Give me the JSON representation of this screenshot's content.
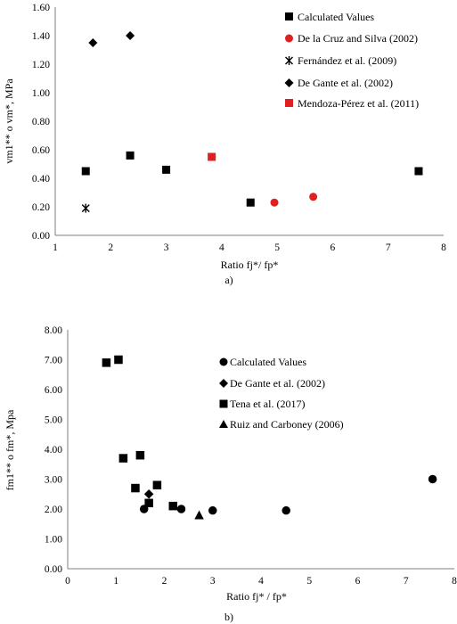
{
  "chart_data": [
    {
      "type": "scatter",
      "caption": "a)",
      "xlabel": "Ratio fj*/ fp*",
      "ylabel": "vm1** o vm*, MPa",
      "xlim": [
        1,
        8
      ],
      "ylim": [
        0,
        1.6
      ],
      "xticks": [
        "1",
        "2",
        "3",
        "4",
        "5",
        "6",
        "7",
        "8"
      ],
      "yticks": [
        "0.00",
        "0.20",
        "0.40",
        "0.60",
        "0.80",
        "1.00",
        "1.20",
        "1.40",
        "1.60"
      ],
      "grid": false,
      "legend_position": "top-right",
      "series": [
        {
          "name": "Calculated Values",
          "marker": "square",
          "color": "#000000",
          "points": [
            [
              1.55,
              0.45
            ],
            [
              2.35,
              0.56
            ],
            [
              3.0,
              0.46
            ],
            [
              4.52,
              0.23
            ],
            [
              7.55,
              0.45
            ]
          ]
        },
        {
          "name": "De la Cruz and Silva (2002)",
          "marker": "circle",
          "color": "#e02020",
          "points": [
            [
              4.95,
              0.23
            ],
            [
              5.65,
              0.27
            ]
          ]
        },
        {
          "name": "Fernández et al. (2009)",
          "marker": "asterisk",
          "color": "#000000",
          "points": [
            [
              1.55,
              0.19
            ]
          ]
        },
        {
          "name": "De Gante et al. (2002)",
          "marker": "diamond",
          "color": "#000000",
          "points": [
            [
              1.68,
              1.35
            ],
            [
              2.35,
              1.4
            ]
          ]
        },
        {
          "name": "Mendoza-Pérez et al. (2011)",
          "marker": "square",
          "color": "#e02020",
          "points": [
            [
              3.82,
              0.55
            ]
          ]
        }
      ]
    },
    {
      "type": "scatter",
      "caption": "b)",
      "xlabel": "Ratio fj* / fp*",
      "ylabel": "fm1** o fm*, Mpa",
      "xlim": [
        0,
        8
      ],
      "ylim": [
        0,
        8
      ],
      "xticks": [
        "0",
        "1",
        "2",
        "3",
        "4",
        "5",
        "6",
        "7",
        "8"
      ],
      "yticks": [
        "0.00",
        "1.00",
        "2.00",
        "3.00",
        "4.00",
        "5.00",
        "6.00",
        "7.00",
        "8.00"
      ],
      "grid": false,
      "legend_position": "top-right",
      "series": [
        {
          "name": "Calculated Values",
          "marker": "circle",
          "color": "#000000",
          "points": [
            [
              1.58,
              2.0
            ],
            [
              2.35,
              2.0
            ],
            [
              3.0,
              1.95
            ],
            [
              4.52,
              1.95
            ],
            [
              7.55,
              3.0
            ]
          ]
        },
        {
          "name": "De Gante et al. (2002)",
          "marker": "diamond",
          "color": "#000000",
          "points": [
            [
              1.68,
              2.5
            ]
          ]
        },
        {
          "name": "Tena et al. (2017)",
          "marker": "square",
          "color": "#000000",
          "points": [
            [
              0.8,
              6.9
            ],
            [
              1.05,
              7.0
            ],
            [
              1.15,
              3.7
            ],
            [
              1.5,
              3.8
            ],
            [
              1.4,
              2.7
            ],
            [
              1.68,
              2.2
            ],
            [
              1.85,
              2.8
            ],
            [
              2.18,
              2.1
            ]
          ]
        },
        {
          "name": "Ruiz and Carboney (2006)",
          "marker": "triangle",
          "color": "#000000",
          "points": [
            [
              2.72,
              1.8
            ]
          ]
        }
      ]
    }
  ]
}
